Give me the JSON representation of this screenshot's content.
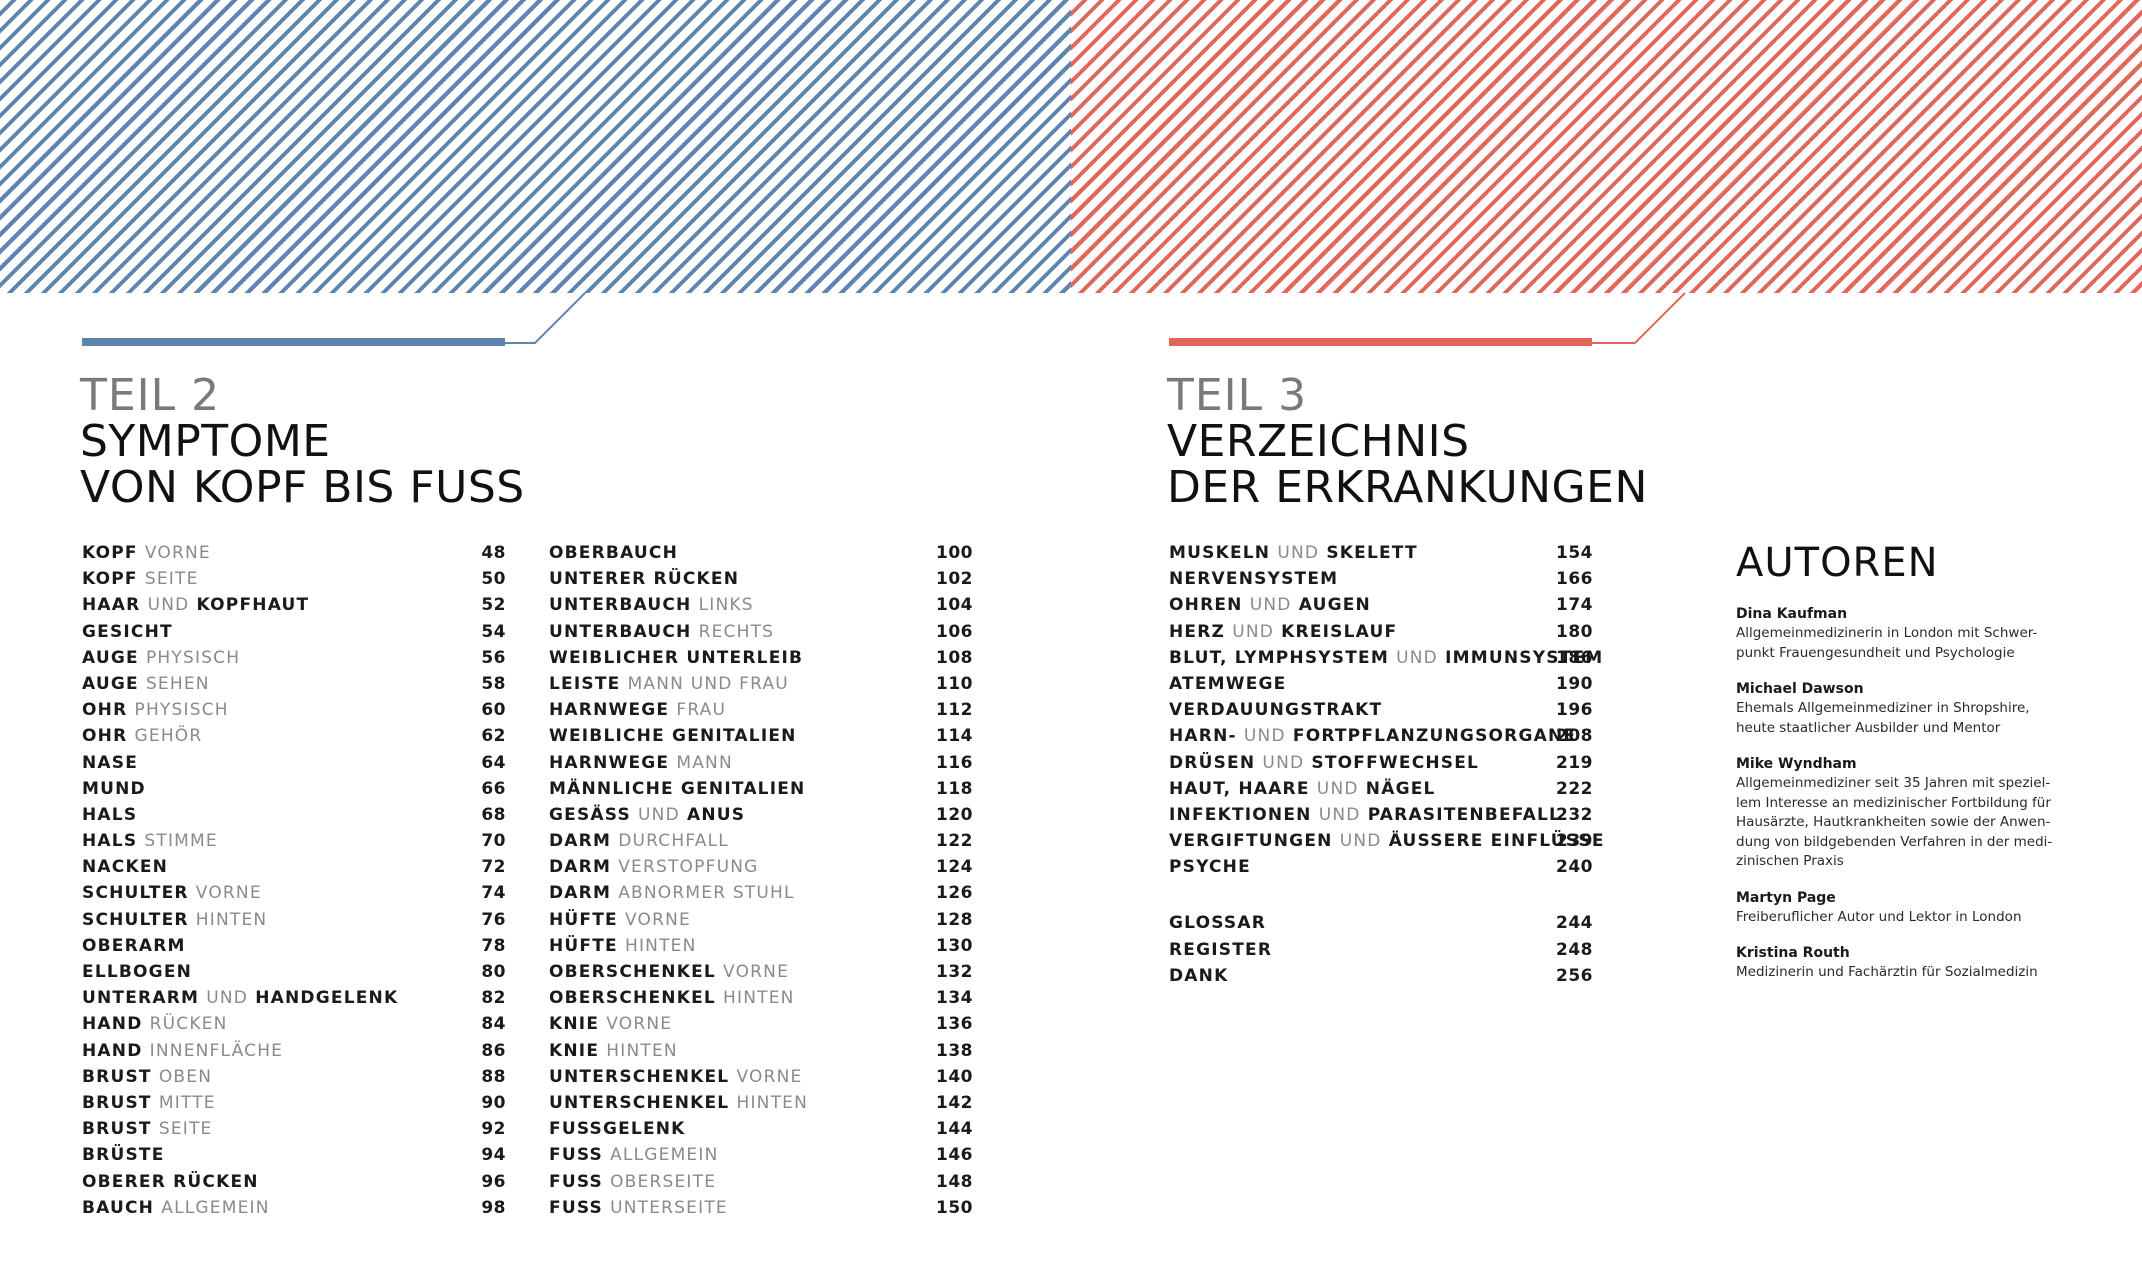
{
  "colors": {
    "blue": "#5e84b0",
    "red": "#e0675a",
    "muted": "#8a8a8a"
  },
  "part2": {
    "number": "TEIL 2",
    "title_line1": "SYMPTOME",
    "title_line2": "VON KOPF BIS FUSS",
    "col1": [
      {
        "k": "KOPF",
        "s": "VORNE",
        "k2": "",
        "page": "48"
      },
      {
        "k": "KOPF",
        "s": "SEITE",
        "k2": "",
        "page": "50"
      },
      {
        "k": "HAAR",
        "s": "UND",
        "k2": "KOPFHAUT",
        "page": "52"
      },
      {
        "k": "GESICHT",
        "s": "",
        "k2": "",
        "page": "54"
      },
      {
        "k": "AUGE",
        "s": "PHYSISCH",
        "k2": "",
        "page": "56"
      },
      {
        "k": "AUGE",
        "s": "SEHEN",
        "k2": "",
        "page": "58"
      },
      {
        "k": "OHR",
        "s": "PHYSISCH",
        "k2": "",
        "page": "60"
      },
      {
        "k": "OHR",
        "s": "GEHÖR",
        "k2": "",
        "page": "62"
      },
      {
        "k": "NASE",
        "s": "",
        "k2": "",
        "page": "64"
      },
      {
        "k": "MUND",
        "s": "",
        "k2": "",
        "page": "66"
      },
      {
        "k": "HALS",
        "s": "",
        "k2": "",
        "page": "68"
      },
      {
        "k": "HALS",
        "s": "STIMME",
        "k2": "",
        "page": "70"
      },
      {
        "k": "NACKEN",
        "s": "",
        "k2": "",
        "page": "72"
      },
      {
        "k": "SCHULTER",
        "s": "VORNE",
        "k2": "",
        "page": "74"
      },
      {
        "k": "SCHULTER",
        "s": "HINTEN",
        "k2": "",
        "page": "76"
      },
      {
        "k": "OBERARM",
        "s": "",
        "k2": "",
        "page": "78"
      },
      {
        "k": "ELLBOGEN",
        "s": "",
        "k2": "",
        "page": "80"
      },
      {
        "k": "UNTERARM",
        "s": "UND",
        "k2": "HANDGELENK",
        "page": "82"
      },
      {
        "k": "HAND",
        "s": "RÜCKEN",
        "k2": "",
        "page": "84"
      },
      {
        "k": "HAND",
        "s": "INNENFLÄCHE",
        "k2": "",
        "page": "86"
      },
      {
        "k": "BRUST",
        "s": "OBEN",
        "k2": "",
        "page": "88"
      },
      {
        "k": "BRUST",
        "s": "MITTE",
        "k2": "",
        "page": "90"
      },
      {
        "k": "BRUST",
        "s": "SEITE",
        "k2": "",
        "page": "92"
      },
      {
        "k": "BRÜSTE",
        "s": "",
        "k2": "",
        "page": "94"
      },
      {
        "k": "OBERER RÜCKEN",
        "s": "",
        "k2": "",
        "page": "96"
      },
      {
        "k": "BAUCH",
        "s": "ALLGEMEIN",
        "k2": "",
        "page": "98"
      }
    ],
    "col2": [
      {
        "k": "OBERBAUCH",
        "s": "",
        "k2": "",
        "page": "100"
      },
      {
        "k": "UNTERER RÜCKEN",
        "s": "",
        "k2": "",
        "page": "102"
      },
      {
        "k": "UNTERBAUCH",
        "s": "LINKS",
        "k2": "",
        "page": "104"
      },
      {
        "k": "UNTERBAUCH",
        "s": "RECHTS",
        "k2": "",
        "page": "106"
      },
      {
        "k": "WEIBLICHER UNTERLEIB",
        "s": "",
        "k2": "",
        "page": "108"
      },
      {
        "k": "LEISTE",
        "s": "MANN UND FRAU",
        "k2": "",
        "page": "110"
      },
      {
        "k": "HARNWEGE",
        "s": "FRAU",
        "k2": "",
        "page": "112"
      },
      {
        "k": "WEIBLICHE GENITALIEN",
        "s": "",
        "k2": "",
        "page": "114"
      },
      {
        "k": "HARNWEGE",
        "s": "MANN",
        "k2": "",
        "page": "116"
      },
      {
        "k": "MÄNNLICHE GENITALIEN",
        "s": "",
        "k2": "",
        "page": "118"
      },
      {
        "k": "GESÄSS",
        "s": "UND",
        "k2": "ANUS",
        "page": "120"
      },
      {
        "k": "DARM",
        "s": "DURCHFALL",
        "k2": "",
        "page": "122"
      },
      {
        "k": "DARM",
        "s": "VERSTOPFUNG",
        "k2": "",
        "page": "124"
      },
      {
        "k": "DARM",
        "s": "ABNORMER STUHL",
        "k2": "",
        "page": "126"
      },
      {
        "k": "HÜFTE",
        "s": "VORNE",
        "k2": "",
        "page": "128"
      },
      {
        "k": "HÜFTE",
        "s": "HINTEN",
        "k2": "",
        "page": "130"
      },
      {
        "k": "OBERSCHENKEL",
        "s": "VORNE",
        "k2": "",
        "page": "132"
      },
      {
        "k": "OBERSCHENKEL",
        "s": "HINTEN",
        "k2": "",
        "page": "134"
      },
      {
        "k": "KNIE",
        "s": "VORNE",
        "k2": "",
        "page": "136"
      },
      {
        "k": "KNIE",
        "s": "HINTEN",
        "k2": "",
        "page": "138"
      },
      {
        "k": "UNTERSCHENKEL",
        "s": "VORNE",
        "k2": "",
        "page": "140"
      },
      {
        "k": "UNTERSCHENKEL",
        "s": "HINTEN",
        "k2": "",
        "page": "142"
      },
      {
        "k": "FUSSGELENK",
        "s": "",
        "k2": "",
        "page": "144"
      },
      {
        "k": "FUSS",
        "s": "ALLGEMEIN",
        "k2": "",
        "page": "146"
      },
      {
        "k": "FUSS",
        "s": "OBERSEITE",
        "k2": "",
        "page": "148"
      },
      {
        "k": "FUSS",
        "s": "UNTERSEITE",
        "k2": "",
        "page": "150"
      }
    ]
  },
  "part3": {
    "number": "TEIL 3",
    "title_line1": "VERZEICHNIS",
    "title_line2": "DER ERKRANKUNGEN",
    "list": [
      {
        "k": "MUSKELN",
        "s": "UND",
        "k2": "SKELETT",
        "page": "154"
      },
      {
        "k": "NERVENSYSTEM",
        "s": "",
        "k2": "",
        "page": "166"
      },
      {
        "k": "OHREN",
        "s": "UND",
        "k2": "AUGEN",
        "page": "174"
      },
      {
        "k": "HERZ",
        "s": "UND",
        "k2": "KREISLAUF",
        "page": "180"
      },
      {
        "k": "BLUT, LYMPHSYSTEM",
        "s": "UND",
        "k2": "IMMUNSYSTEM",
        "page": "186"
      },
      {
        "k": "ATEMWEGE",
        "s": "",
        "k2": "",
        "page": "190"
      },
      {
        "k": "VERDAUUNGSTRAKT",
        "s": "",
        "k2": "",
        "page": "196"
      },
      {
        "k": "HARN-",
        "s": "UND",
        "k2": "FORTPFLANZUNGSORGANE",
        "page": "208"
      },
      {
        "k": "DRÜSEN",
        "s": "UND",
        "k2": "STOFFWECHSEL",
        "page": "219"
      },
      {
        "k": "HAUT, HAARE",
        "s": "UND",
        "k2": "NÄGEL",
        "page": "222"
      },
      {
        "k": "INFEKTIONEN",
        "s": "UND",
        "k2": "PARASITENBEFALL",
        "page": "232"
      },
      {
        "k": "VERGIFTUNGEN",
        "s": "UND",
        "k2": "ÄUSSERE EINFLÜSSE",
        "page": "239"
      },
      {
        "k": "PSYCHE",
        "s": "",
        "k2": "",
        "page": "240"
      }
    ],
    "extras": [
      {
        "k": "GLOSSAR",
        "s": "",
        "k2": "",
        "page": "244"
      },
      {
        "k": "REGISTER",
        "s": "",
        "k2": "",
        "page": "248"
      },
      {
        "k": "DANK",
        "s": "",
        "k2": "",
        "page": "256"
      }
    ]
  },
  "authors": {
    "title": "AUTOREN",
    "people": [
      {
        "name": "Dina Kaufman",
        "desc": [
          "Allgemeinmedizinerin in London mit Schwer-",
          "punkt Frauengesundheit und Psychologie"
        ]
      },
      {
        "name": "Michael Dawson",
        "desc": [
          "Ehemals Allgemeinmediziner in Shropshire,",
          "heute staatlicher Ausbilder und Mentor"
        ]
      },
      {
        "name": "Mike Wyndham",
        "desc": [
          "Allgemeinmediziner seit 35 Jahren mit speziel-",
          "lem Interesse an medizinischer Fortbildung für",
          "Hausärzte, Hautkrankheiten sowie der Anwen-",
          "dung von bildgebenden Verfahren in der medi-",
          "zinischen Praxis"
        ]
      },
      {
        "name": "Martyn Page",
        "desc": [
          "Freiberuflicher Autor und Lektor in London"
        ]
      },
      {
        "name": "Kristina Routh",
        "desc": [
          "Medizinerin und Fachärztin für Sozialmedizin"
        ]
      }
    ]
  }
}
